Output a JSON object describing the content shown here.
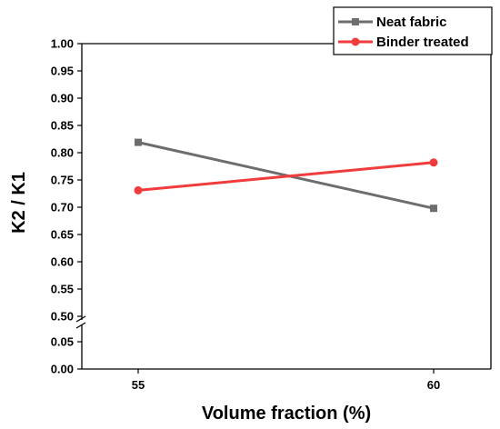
{
  "chart_data": {
    "type": "line",
    "title": "",
    "xlabel": "Volume fraction (%)",
    "ylabel": "K2 / K1",
    "x": [
      55,
      60
    ],
    "x_tick_labels": [
      "55",
      "60"
    ],
    "y_ticks_upper": [
      "0.50",
      "0.55",
      "0.60",
      "0.65",
      "0.70",
      "0.75",
      "0.80",
      "0.85",
      "0.90",
      "0.95",
      "1.00"
    ],
    "y_ticks_lower": [
      "0.00",
      "0.05"
    ],
    "ylim_upper": [
      0.5,
      1.0
    ],
    "ylim_lower": [
      0.0,
      0.05
    ],
    "y_axis_break": true,
    "grid": false,
    "legend_position": "top-right",
    "series": [
      {
        "name": "Neat fabric",
        "values": [
          0.819,
          0.698
        ],
        "color": "#6d6d6d",
        "marker": "square"
      },
      {
        "name": "Binder treated",
        "values": [
          0.731,
          0.782
        ],
        "color": "#f03c3c",
        "marker": "circle"
      }
    ]
  }
}
